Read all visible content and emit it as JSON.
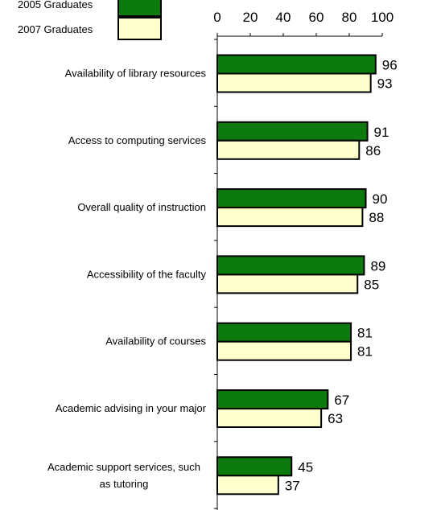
{
  "chart_data": {
    "type": "bar",
    "orientation": "horizontal",
    "categories": [
      [
        "Availability of library resources"
      ],
      [
        "Access to computing services"
      ],
      [
        "Overall quality of instruction"
      ],
      [
        "Accessibility of the faculty"
      ],
      [
        "Availability of courses"
      ],
      [
        "Academic advising in your major"
      ],
      [
        "Academic support services, such",
        "as tutoring"
      ]
    ],
    "series": [
      {
        "name": "2005 Graduates",
        "color": "#0d7a0d",
        "values": [
          96,
          91,
          90,
          89,
          81,
          67,
          45
        ]
      },
      {
        "name": "2007 Graduates",
        "color": "#ffffcc",
        "values": [
          93,
          86,
          88,
          85,
          81,
          63,
          37
        ]
      }
    ],
    "xlim": [
      0,
      100
    ],
    "xticks": [
      0,
      20,
      40,
      60,
      80,
      100
    ],
    "axis_position": "top",
    "legend_position": "top-left",
    "data_labels": true,
    "grid": false
  }
}
